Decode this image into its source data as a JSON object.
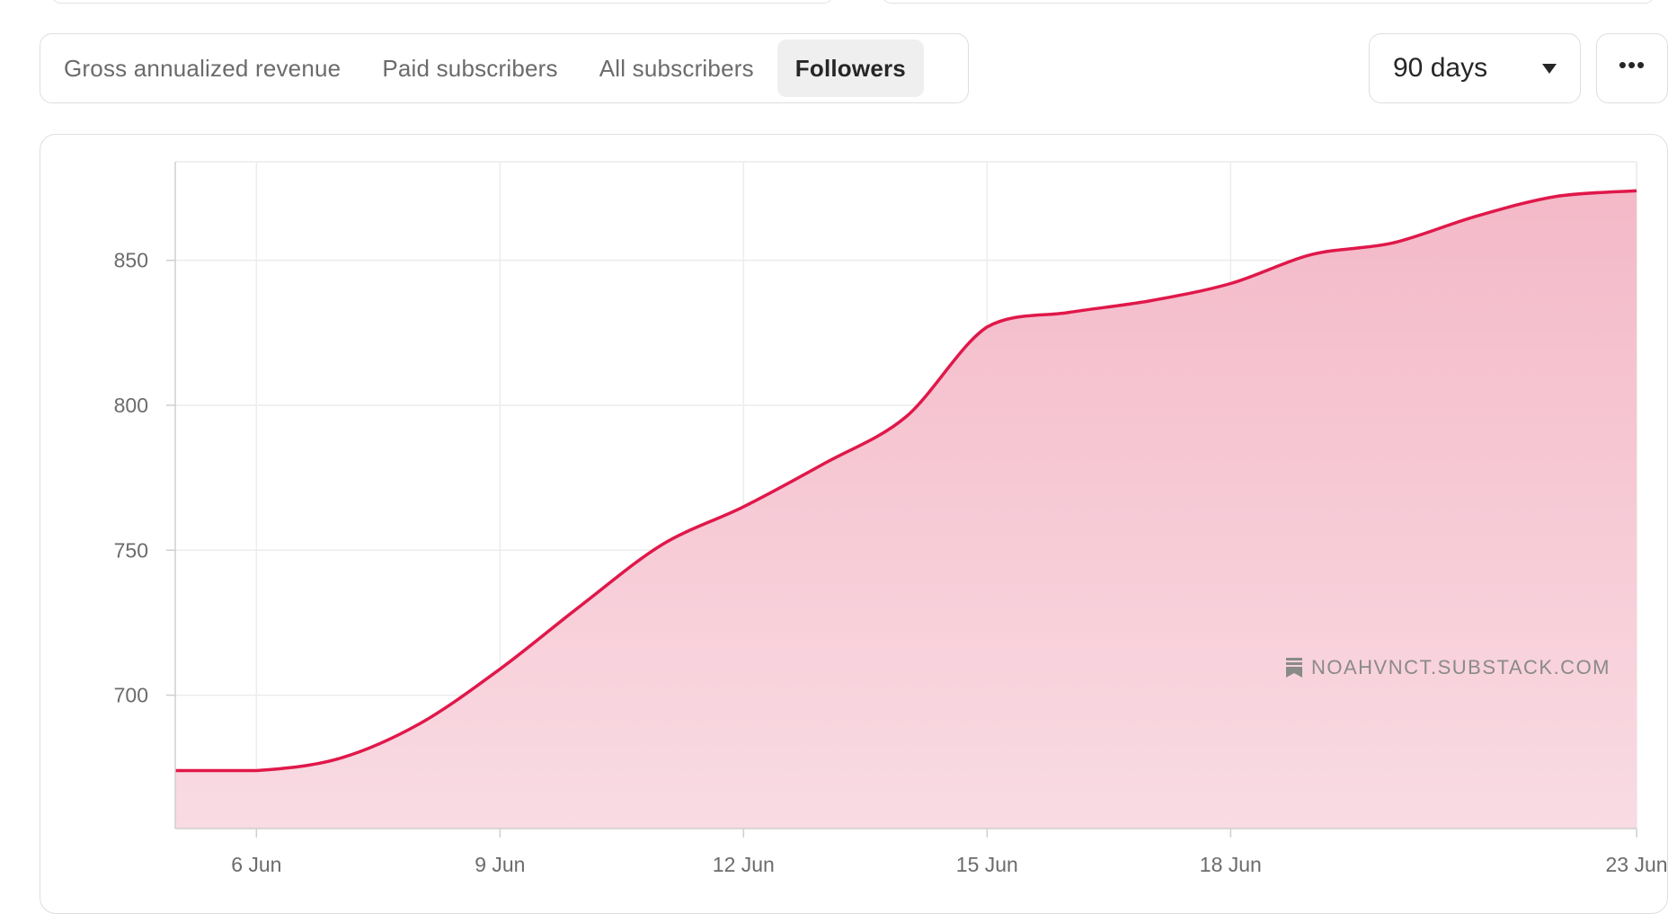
{
  "tabs": [
    {
      "label": "Gross annualized revenue",
      "active": false
    },
    {
      "label": "Paid subscribers",
      "active": false
    },
    {
      "label": "All subscribers",
      "active": false
    },
    {
      "label": "Followers",
      "active": true
    }
  ],
  "range_select": {
    "value": "90 days",
    "icon": "caret-down-icon"
  },
  "more_button": {
    "label": "•••",
    "icon": "more-dots-icon"
  },
  "watermark": {
    "text": "NOAHVNCT.SUBSTACK.COM",
    "icon": "substack-logo-icon"
  },
  "colors": {
    "line": "#e0184a",
    "fill_top": "#f4b9c8",
    "fill_bottom": "#f9dbe3",
    "grid": "#ececec"
  },
  "chart_data": {
    "type": "area",
    "title": "",
    "xlabel": "",
    "ylabel": "",
    "x_ticks": [
      "6 Jun",
      "9 Jun",
      "12 Jun",
      "15 Jun",
      "18 Jun",
      "23 Jun"
    ],
    "y_ticks": [
      700,
      750,
      800,
      850
    ],
    "xlim": [
      "2024-06-05",
      "2024-06-23"
    ],
    "ylim": [
      654,
      884
    ],
    "grid": true,
    "legend": "none",
    "series": [
      {
        "name": "",
        "x": [
          "2024-06-05",
          "2024-06-06",
          "2024-06-07",
          "2024-06-08",
          "2024-06-09",
          "2024-06-10",
          "2024-06-11",
          "2024-06-12",
          "2024-06-13",
          "2024-06-14",
          "2024-06-15",
          "2024-06-16",
          "2024-06-17",
          "2024-06-18",
          "2024-06-19",
          "2024-06-20",
          "2024-06-21",
          "2024-06-22",
          "2024-06-23"
        ],
        "values": [
          674,
          674,
          678,
          690,
          709,
          731,
          752,
          765,
          780,
          796,
          827,
          832,
          836,
          842,
          852,
          856,
          865,
          872,
          874
        ]
      }
    ]
  }
}
